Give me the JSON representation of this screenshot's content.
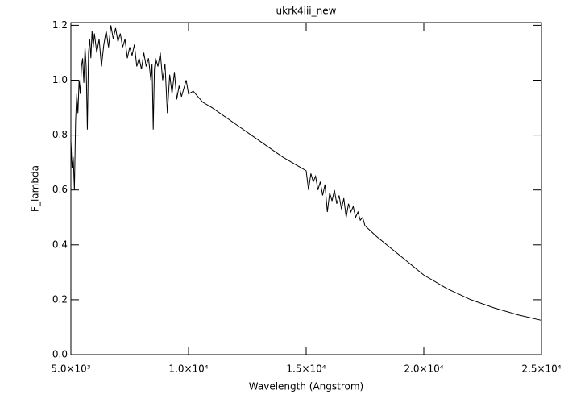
{
  "chart_data": {
    "type": "line",
    "title": "ukrk4iii_new",
    "x_label": "Wavelength (Angstrom)",
    "y_label": "F_lambda",
    "x": [
      5000,
      5050,
      5100,
      5150,
      5200,
      5250,
      5300,
      5350,
      5400,
      5450,
      5500,
      5550,
      5600,
      5650,
      5700,
      5750,
      5800,
      5850,
      5900,
      5950,
      6000,
      6100,
      6200,
      6300,
      6400,
      6500,
      6600,
      6700,
      6800,
      6900,
      7000,
      7100,
      7200,
      7300,
      7400,
      7500,
      7600,
      7700,
      7800,
      7900,
      8000,
      8100,
      8200,
      8300,
      8400,
      8450,
      8500,
      8550,
      8600,
      8700,
      8800,
      8900,
      9000,
      9100,
      9200,
      9300,
      9400,
      9500,
      9600,
      9700,
      9800,
      9900,
      10000,
      10200,
      10400,
      10600,
      11000,
      12000,
      13000,
      14000,
      14800,
      15000,
      15100,
      15200,
      15300,
      15400,
      15500,
      15600,
      15700,
      15800,
      15900,
      16000,
      16100,
      16200,
      16300,
      16400,
      16500,
      16600,
      16700,
      16800,
      16900,
      17000,
      17100,
      17200,
      17300,
      17400,
      17500,
      18000,
      19000,
      20000,
      21000,
      22000,
      23000,
      24000,
      25000
    ],
    "values": [
      0.78,
      0.68,
      0.72,
      0.6,
      0.85,
      0.95,
      0.88,
      1.0,
      0.95,
      1.05,
      1.08,
      0.99,
      1.12,
      1.05,
      0.82,
      1.1,
      1.15,
      1.08,
      1.18,
      1.12,
      1.17,
      1.1,
      1.15,
      1.05,
      1.13,
      1.18,
      1.12,
      1.2,
      1.15,
      1.19,
      1.14,
      1.17,
      1.12,
      1.15,
      1.08,
      1.12,
      1.09,
      1.13,
      1.05,
      1.08,
      1.04,
      1.1,
      1.05,
      1.08,
      1.0,
      1.06,
      0.82,
      1.04,
      1.08,
      1.05,
      1.1,
      1.0,
      1.06,
      0.88,
      1.02,
      0.95,
      1.03,
      0.93,
      0.98,
      0.94,
      0.97,
      1.0,
      0.95,
      0.96,
      0.94,
      0.92,
      0.9,
      0.84,
      0.78,
      0.72,
      0.68,
      0.67,
      0.6,
      0.66,
      0.63,
      0.65,
      0.6,
      0.63,
      0.58,
      0.62,
      0.52,
      0.59,
      0.56,
      0.6,
      0.55,
      0.58,
      0.53,
      0.57,
      0.5,
      0.55,
      0.52,
      0.54,
      0.5,
      0.52,
      0.49,
      0.5,
      0.47,
      0.43,
      0.36,
      0.29,
      0.24,
      0.2,
      0.17,
      0.145,
      0.125
    ],
    "color": "#000000",
    "xlim": [
      5000,
      25000
    ],
    "xticks": [
      {
        "value": 5000,
        "label": "5.0×10³"
      },
      {
        "value": 10000,
        "label": "1.0×10⁴"
      },
      {
        "value": 15000,
        "label": "1.5×10⁴"
      },
      {
        "value": 20000,
        "label": "2.0×10⁴"
      },
      {
        "value": 25000,
        "label": "2.5×10⁴"
      }
    ],
    "ylim": [
      0,
      1.21
    ],
    "yticks": [
      {
        "value": 0,
        "label": "0.0"
      },
      0.2,
      0.4,
      0.6,
      0.8,
      {
        "value": 1,
        "label": "1.0"
      },
      1.2
    ]
  }
}
